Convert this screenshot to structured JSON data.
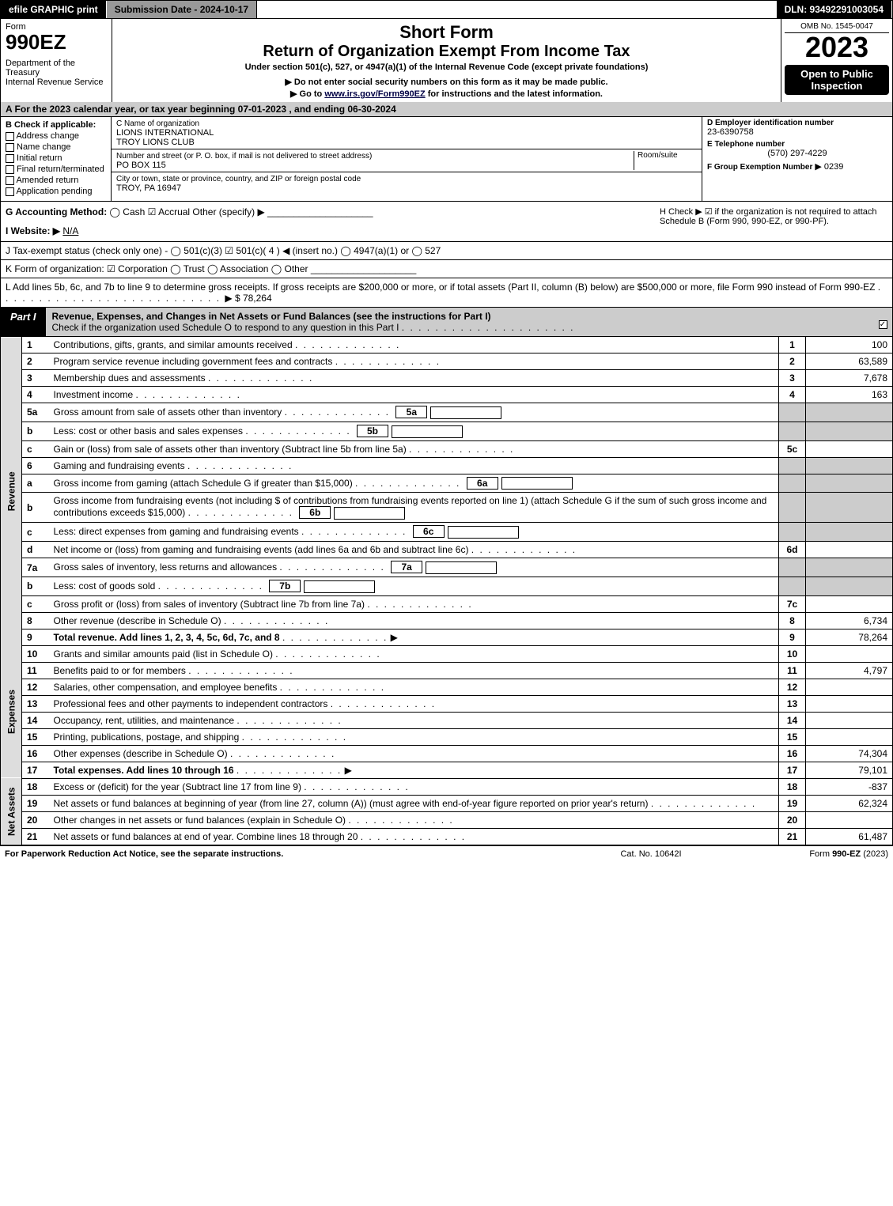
{
  "topbar": {
    "efile": "efile GRAPHIC print",
    "submission": "Submission Date - 2024-10-17",
    "dln": "DLN: 93492291003054"
  },
  "header": {
    "form_word": "Form",
    "form_no": "990EZ",
    "dept": "Department of the Treasury\nInternal Revenue Service",
    "title1": "Short Form",
    "title2": "Return of Organization Exempt From Income Tax",
    "sub": "Under section 501(c), 527, or 4947(a)(1) of the Internal Revenue Code (except private foundations)",
    "note1": "▶ Do not enter social security numbers on this form as it may be made public.",
    "note2_pre": "▶ Go to ",
    "note2_link": "www.irs.gov/Form990EZ",
    "note2_post": " for instructions and the latest information.",
    "omb": "OMB No. 1545-0047",
    "year": "2023",
    "inspect": "Open to Public Inspection"
  },
  "rowA": "A  For the 2023 calendar year, or tax year beginning 07-01-2023 , and ending 06-30-2024",
  "colB": {
    "title": "B  Check if applicable:",
    "opts": [
      "Address change",
      "Name change",
      "Initial return",
      "Final return/terminated",
      "Amended return",
      "Application pending"
    ]
  },
  "colC": {
    "name_lbl": "C Name of organization",
    "name1": "LIONS INTERNATIONAL",
    "name2": "TROY LIONS CLUB",
    "addr_lbl": "Number and street (or P. O. box, if mail is not delivered to street address)",
    "room_lbl": "Room/suite",
    "addr": "PO BOX 115",
    "city_lbl": "City or town, state or province, country, and ZIP or foreign postal code",
    "city": "TROY, PA  16947"
  },
  "colD": {
    "ein_lbl": "D Employer identification number",
    "ein": "23-6390758",
    "tel_lbl": "E Telephone number",
    "tel": "(570) 297-4229",
    "grp_lbl": "F Group Exemption Number",
    "grp": "▶ 0239"
  },
  "rowG": {
    "lbl": "G Accounting Method:",
    "opts": "  ◯ Cash   ☑ Accrual   Other (specify) ▶ ____________________"
  },
  "rowH": "H   Check ▶  ☑  if the organization is not required to attach Schedule B (Form 990, 990-EZ, or 990-PF).",
  "rowI": {
    "lbl": "I Website: ▶",
    "val": "N/A"
  },
  "rowJ": "J Tax-exempt status (check only one) -  ◯ 501(c)(3)   ☑ 501(c)( 4 ) ◀ (insert no.)  ◯ 4947(a)(1) or  ◯ 527",
  "rowK": "K Form of organization:   ☑ Corporation   ◯ Trust   ◯ Association   ◯ Other  ____________________",
  "rowL": {
    "text": "L Add lines 5b, 6c, and 7b to line 9 to determine gross receipts. If gross receipts are $200,000 or more, or if total assets (Part II, column (B) below) are $500,000 or more, file Form 990 instead of Form 990-EZ",
    "amount": "▶ $ 78,264"
  },
  "part1": {
    "tag": "Part I",
    "title": "Revenue, Expenses, and Changes in Net Assets or Fund Balances (see the instructions for Part I)",
    "check_line": "Check if the organization used Schedule O to respond to any question in this Part I"
  },
  "sideLabels": {
    "revenue": "Revenue",
    "expenses": "Expenses",
    "netassets": "Net Assets"
  },
  "revenue": [
    {
      "n": "1",
      "t": "Contributions, gifts, grants, and similar amounts received",
      "rn": "1",
      "v": "100"
    },
    {
      "n": "2",
      "t": "Program service revenue including government fees and contracts",
      "rn": "2",
      "v": "63,589"
    },
    {
      "n": "3",
      "t": "Membership dues and assessments",
      "rn": "3",
      "v": "7,678"
    },
    {
      "n": "4",
      "t": "Investment income",
      "rn": "4",
      "v": "163"
    },
    {
      "n": "5a",
      "t": "Gross amount from sale of assets other than inventory",
      "box": "5a",
      "gray": true
    },
    {
      "n": "b",
      "t": "Less: cost or other basis and sales expenses",
      "box": "5b",
      "gray": true
    },
    {
      "n": "c",
      "t": "Gain or (loss) from sale of assets other than inventory (Subtract line 5b from line 5a)",
      "rn": "5c",
      "v": ""
    },
    {
      "n": "6",
      "t": "Gaming and fundraising events",
      "noamt": true
    },
    {
      "n": "a",
      "t": "Gross income from gaming (attach Schedule G if greater than $15,000)",
      "box": "6a",
      "gray": true
    },
    {
      "n": "b",
      "t": "Gross income from fundraising events (not including $                of contributions from fundraising events reported on line 1) (attach Schedule G if the sum of such gross income and contributions exceeds $15,000)",
      "box": "6b",
      "gray": true
    },
    {
      "n": "c",
      "t": "Less: direct expenses from gaming and fundraising events",
      "box": "6c",
      "gray": true
    },
    {
      "n": "d",
      "t": "Net income or (loss) from gaming and fundraising events (add lines 6a and 6b and subtract line 6c)",
      "rn": "6d",
      "v": ""
    },
    {
      "n": "7a",
      "t": "Gross sales of inventory, less returns and allowances",
      "box": "7a",
      "gray": true
    },
    {
      "n": "b",
      "t": "Less: cost of goods sold",
      "box": "7b",
      "gray": true
    },
    {
      "n": "c",
      "t": "Gross profit or (loss) from sales of inventory (Subtract line 7b from line 7a)",
      "rn": "7c",
      "v": ""
    },
    {
      "n": "8",
      "t": "Other revenue (describe in Schedule O)",
      "rn": "8",
      "v": "6,734"
    },
    {
      "n": "9",
      "t": "Total revenue. Add lines 1, 2, 3, 4, 5c, 6d, 7c, and 8",
      "rn": "9",
      "v": "78,264",
      "bold": true,
      "arrow": true
    }
  ],
  "expenses": [
    {
      "n": "10",
      "t": "Grants and similar amounts paid (list in Schedule O)",
      "rn": "10",
      "v": ""
    },
    {
      "n": "11",
      "t": "Benefits paid to or for members",
      "rn": "11",
      "v": "4,797"
    },
    {
      "n": "12",
      "t": "Salaries, other compensation, and employee benefits",
      "rn": "12",
      "v": ""
    },
    {
      "n": "13",
      "t": "Professional fees and other payments to independent contractors",
      "rn": "13",
      "v": ""
    },
    {
      "n": "14",
      "t": "Occupancy, rent, utilities, and maintenance",
      "rn": "14",
      "v": ""
    },
    {
      "n": "15",
      "t": "Printing, publications, postage, and shipping",
      "rn": "15",
      "v": ""
    },
    {
      "n": "16",
      "t": "Other expenses (describe in Schedule O)",
      "rn": "16",
      "v": "74,304"
    },
    {
      "n": "17",
      "t": "Total expenses. Add lines 10 through 16",
      "rn": "17",
      "v": "79,101",
      "bold": true,
      "arrow": true
    }
  ],
  "netassets": [
    {
      "n": "18",
      "t": "Excess or (deficit) for the year (Subtract line 17 from line 9)",
      "rn": "18",
      "v": "-837"
    },
    {
      "n": "19",
      "t": "Net assets or fund balances at beginning of year (from line 27, column (A)) (must agree with end-of-year figure reported on prior year's return)",
      "rn": "19",
      "v": "62,324"
    },
    {
      "n": "20",
      "t": "Other changes in net assets or fund balances (explain in Schedule O)",
      "rn": "20",
      "v": ""
    },
    {
      "n": "21",
      "t": "Net assets or fund balances at end of year. Combine lines 18 through 20",
      "rn": "21",
      "v": "61,487"
    }
  ],
  "footer": {
    "l": "For Paperwork Reduction Act Notice, see the separate instructions.",
    "c": "Cat. No. 10642I",
    "r": "Form 990-EZ (2023)"
  }
}
